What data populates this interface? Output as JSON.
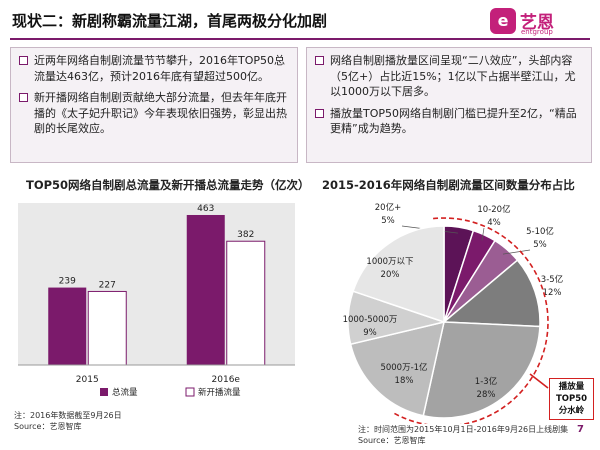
{
  "header": {
    "title": "现状二：新剧称霸流量江湖，首尾两极分化加剧",
    "logo_mark": "e",
    "logo_name": "艺恩",
    "logo_sub": "entgroup"
  },
  "left_box": {
    "bullets": [
      "近两年网络自制剧流量节节攀升，2016年TOP50总流量达463亿，预计2016年底有望超过500亿。",
      "新开播网络自制剧贡献绝大部分流量，但去年年底开播的《太子妃升职记》今年表现依旧强势，彰显出热剧的长尾效应。"
    ]
  },
  "right_box": {
    "bullets": [
      "网络自制剧播放量区间呈现“二八效应”，头部内容（5亿+）占比近15%；1亿以下占据半壁江山，尤以1000万以下居多。",
      "播放量TOP50网络自制剧门槛已提升至2亿，“精品更精”成为趋势。"
    ]
  },
  "chart_data": [
    {
      "type": "bar",
      "title": "TOP50网络自制剧总流量及新开播总流量走势（亿次）",
      "categories": [
        "2015",
        "2016e"
      ],
      "series": [
        {
          "name": "总流量",
          "values": [
            239,
            463
          ],
          "color": "#7b1a6b"
        },
        {
          "name": "新开播流量",
          "values": [
            227,
            382
          ],
          "color": "#ffffff",
          "stroke": "#7b1a6b"
        }
      ],
      "ylim": [
        0,
        500
      ],
      "legend": "bottom",
      "grid": false
    },
    {
      "type": "pie",
      "title": "2015-2016年网络自制剧流量区间数量分布占比",
      "slices": [
        {
          "label": "20亿+",
          "value": 5,
          "color": "#5c1357"
        },
        {
          "label": "10-20亿",
          "value": 4,
          "color": "#7b1a6b"
        },
        {
          "label": "5-10亿",
          "value": 5,
          "color": "#9b5d93"
        },
        {
          "label": "3-5亿",
          "value": 12,
          "color": "#7d7d7d"
        },
        {
          "label": "1-3亿",
          "value": 28,
          "color": "#a3a3a3"
        },
        {
          "label": "5000万-1亿",
          "value": 18,
          "color": "#bdbdbd"
        },
        {
          "label": "1000-5000万",
          "value": 9,
          "color": "#d0d0d0"
        },
        {
          "label": "1000万以下",
          "value": 20,
          "color": "#e6e6e6"
        }
      ],
      "value_suffix": "%"
    }
  ],
  "callout": {
    "lines": [
      "播放量",
      "TOP50",
      "分水岭"
    ]
  },
  "footnotes": {
    "left": [
      "注：2016年数据截至9月26日",
      "Source：艺恩智库"
    ],
    "right": [
      "注：时间范围为2015年10月1日-2016年9月26日上线剧集",
      "Source：艺恩智库"
    ]
  },
  "page_number": "7"
}
